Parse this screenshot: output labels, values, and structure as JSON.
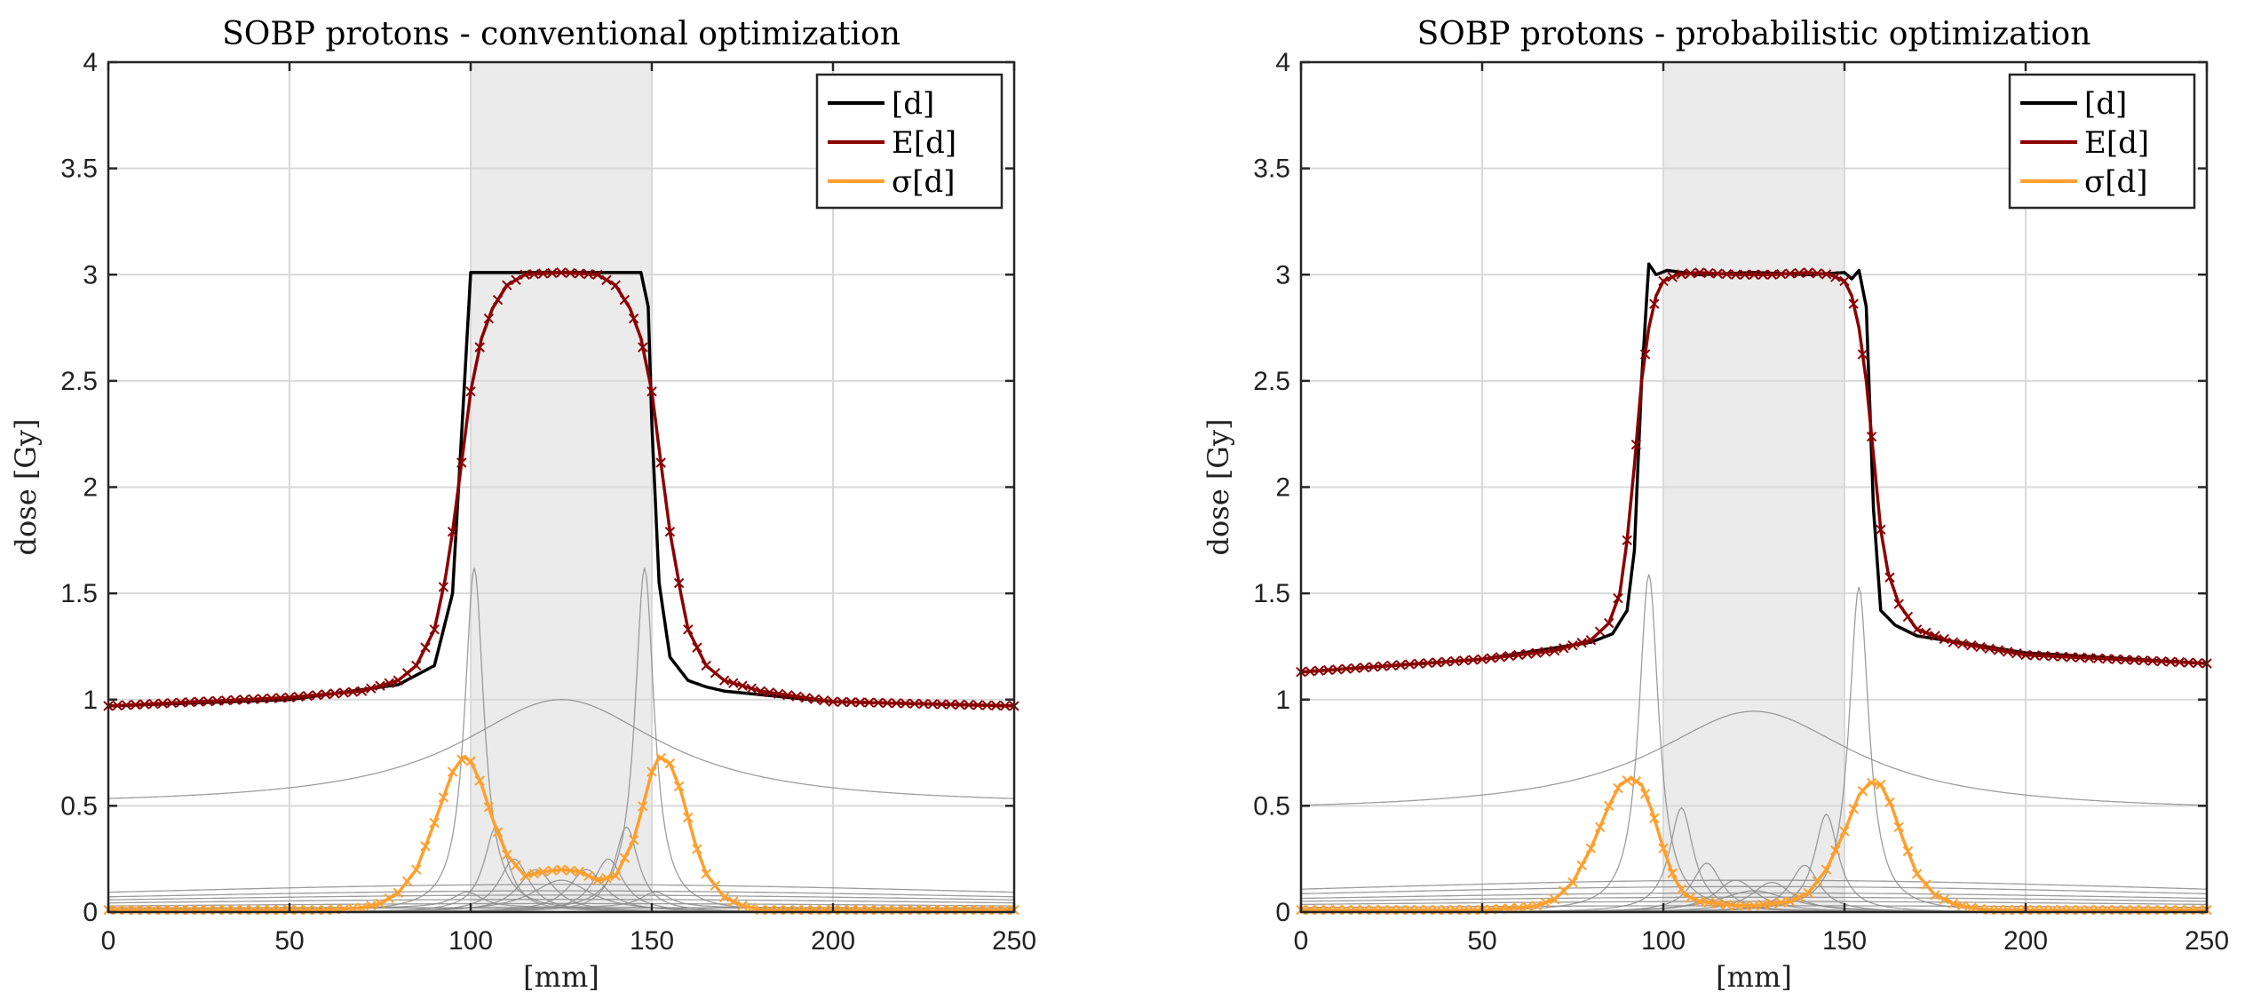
{
  "chart_data": [
    {
      "type": "line",
      "title": "SOBP protons - conventional optimization",
      "xlabel": "[mm]",
      "ylabel": "dose [Gy]",
      "xlim": [
        0,
        250
      ],
      "ylim": [
        0,
        4
      ],
      "xticks": [
        0,
        50,
        100,
        150,
        200,
        250
      ],
      "xtick_labels": [
        "0",
        "50",
        "100",
        "150",
        "200",
        "250"
      ],
      "yticks": [
        0,
        0.5,
        1,
        1.5,
        2,
        2.5,
        3,
        3.5,
        4
      ],
      "ytick_labels": [
        "0",
        "0.5",
        "1",
        "1.5",
        "2",
        "2.5",
        "3",
        "3.5",
        "4"
      ],
      "grid": true,
      "legend_position": "top-right",
      "target_region": [
        100,
        150
      ],
      "series": [
        {
          "name": "[d]",
          "color": "#000000",
          "x": [
            0,
            50,
            80,
            90,
            95,
            98,
            100,
            103,
            110,
            125,
            140,
            147,
            149,
            150,
            152,
            155,
            160,
            165,
            170,
            200,
            250
          ],
          "y": [
            0.97,
            1.0,
            1.07,
            1.16,
            1.5,
            2.4,
            3.01,
            3.01,
            3.01,
            3.01,
            3.01,
            3.01,
            2.85,
            2.3,
            1.55,
            1.2,
            1.09,
            1.06,
            1.04,
            0.99,
            0.97
          ]
        },
        {
          "name": "E[d]",
          "color": "#8b0000",
          "marker": "x",
          "x": [
            0,
            50,
            70,
            80,
            85,
            90,
            93,
            95,
            98,
            100,
            103,
            106,
            110,
            115,
            125,
            135,
            140,
            144,
            147,
            150,
            152,
            155,
            158,
            160,
            165,
            170,
            180,
            200,
            250
          ],
          "y": [
            0.97,
            1.01,
            1.04,
            1.09,
            1.16,
            1.33,
            1.57,
            1.79,
            2.18,
            2.45,
            2.7,
            2.84,
            2.95,
            3.0,
            3.01,
            3.0,
            2.95,
            2.84,
            2.7,
            2.45,
            2.18,
            1.79,
            1.5,
            1.33,
            1.16,
            1.09,
            1.04,
            0.99,
            0.97
          ]
        },
        {
          "name": "σ[d]",
          "color": "#ff9f2e",
          "marker": "x",
          "x": [
            0,
            60,
            70,
            75,
            80,
            85,
            90,
            95,
            98,
            100,
            103,
            106,
            110,
            115,
            120,
            125,
            130,
            135,
            140,
            145,
            148,
            150,
            152,
            155,
            158,
            162,
            165,
            170,
            175,
            180,
            190,
            250
          ],
          "y": [
            0.01,
            0.01,
            0.02,
            0.04,
            0.09,
            0.2,
            0.42,
            0.66,
            0.73,
            0.71,
            0.6,
            0.44,
            0.27,
            0.17,
            0.19,
            0.2,
            0.19,
            0.15,
            0.17,
            0.34,
            0.53,
            0.66,
            0.73,
            0.7,
            0.57,
            0.32,
            0.18,
            0.07,
            0.03,
            0.01,
            0.01,
            0.01
          ]
        }
      ],
      "thin_curves": [
        {
          "center": 101,
          "peak": 1.62,
          "width": 3.2,
          "base": 0.0
        },
        {
          "center": 148,
          "peak": 1.62,
          "width": 3.2,
          "base": 0.0
        },
        {
          "center": 125,
          "peak": 1.0,
          "width": 34,
          "base": 0.5
        },
        {
          "center": 107,
          "peak": 0.4,
          "width": 4,
          "base": 0.0
        },
        {
          "center": 143,
          "peak": 0.4,
          "width": 4,
          "base": 0.0
        },
        {
          "center": 112,
          "peak": 0.25,
          "width": 5,
          "base": 0.0
        },
        {
          "center": 138,
          "peak": 0.25,
          "width": 5,
          "base": 0.0
        },
        {
          "center": 118,
          "peak": 0.2,
          "width": 6,
          "base": 0.0
        },
        {
          "center": 132,
          "peak": 0.2,
          "width": 6,
          "base": 0.0
        },
        {
          "center": 125,
          "peak": 0.15,
          "width": 10,
          "base": 0.0
        },
        {
          "center": 99,
          "peak": 0.15,
          "width": 5,
          "base": 0.02
        },
        {
          "center": 151,
          "peak": 0.15,
          "width": 5,
          "base": 0.02
        },
        {
          "center": 125,
          "peak": 0.13,
          "width": 200,
          "base": 0.0
        },
        {
          "center": 125,
          "peak": 0.1,
          "width": 200,
          "base": 0.0
        },
        {
          "center": 125,
          "peak": 0.08,
          "width": 200,
          "base": 0.0
        },
        {
          "center": 125,
          "peak": 0.06,
          "width": 200,
          "base": 0.0
        },
        {
          "center": 125,
          "peak": 0.04,
          "width": 200,
          "base": 0.0
        },
        {
          "center": 125,
          "peak": 0.02,
          "width": 200,
          "base": 0.0
        }
      ]
    },
    {
      "type": "line",
      "title": "SOBP protons - probabilistic optimization",
      "xlabel": "[mm]",
      "ylabel": "dose [Gy]",
      "xlim": [
        0,
        250
      ],
      "ylim": [
        0,
        4
      ],
      "xticks": [
        0,
        50,
        100,
        150,
        200,
        250
      ],
      "xtick_labels": [
        "0",
        "50",
        "100",
        "150",
        "200",
        "250"
      ],
      "yticks": [
        0,
        0.5,
        1,
        1.5,
        2,
        2.5,
        3,
        3.5,
        4
      ],
      "ytick_labels": [
        "0",
        "0.5",
        "1",
        "1.5",
        "2",
        "2.5",
        "3",
        "3.5",
        "4"
      ],
      "grid": true,
      "legend_position": "top-right",
      "target_region": [
        100,
        150
      ],
      "series": [
        {
          "name": "[d]",
          "color": "#000000",
          "x": [
            0,
            50,
            80,
            86,
            90,
            92,
            94,
            96,
            98,
            101,
            110,
            125,
            140,
            150,
            152,
            154,
            156,
            158,
            160,
            164,
            170,
            200,
            250
          ],
          "y": [
            1.13,
            1.19,
            1.27,
            1.31,
            1.42,
            1.7,
            2.5,
            3.05,
            3.0,
            3.02,
            3.0,
            3.01,
            3.0,
            3.01,
            2.98,
            3.02,
            2.85,
            1.9,
            1.42,
            1.35,
            1.3,
            1.22,
            1.17
          ]
        },
        {
          "name": "E[d]",
          "color": "#8b0000",
          "marker": "x",
          "x": [
            0,
            50,
            70,
            80,
            85,
            88,
            90,
            92,
            94,
            96,
            98,
            100,
            104,
            110,
            120,
            130,
            140,
            146,
            150,
            152,
            154,
            156,
            158,
            160,
            162,
            165,
            170,
            180,
            200,
            250
          ],
          "y": [
            1.13,
            1.19,
            1.23,
            1.28,
            1.36,
            1.5,
            1.75,
            2.1,
            2.5,
            2.75,
            2.9,
            2.97,
            3.0,
            3.01,
            3.0,
            3.0,
            3.01,
            3.0,
            2.97,
            2.9,
            2.75,
            2.5,
            2.15,
            1.8,
            1.6,
            1.45,
            1.33,
            1.27,
            1.21,
            1.17
          ]
        },
        {
          "name": "σ[d]",
          "color": "#ff9f2e",
          "marker": "x",
          "x": [
            0,
            50,
            60,
            65,
            70,
            75,
            80,
            85,
            88,
            91,
            94,
            97,
            100,
            103,
            106,
            110,
            115,
            120,
            125,
            130,
            135,
            140,
            145,
            150,
            154,
            157,
            160,
            163,
            166,
            170,
            175,
            180,
            185,
            190,
            250
          ],
          "y": [
            0.01,
            0.01,
            0.02,
            0.03,
            0.06,
            0.14,
            0.3,
            0.5,
            0.6,
            0.63,
            0.6,
            0.47,
            0.3,
            0.16,
            0.08,
            0.05,
            0.04,
            0.03,
            0.03,
            0.04,
            0.05,
            0.09,
            0.2,
            0.38,
            0.55,
            0.61,
            0.6,
            0.5,
            0.35,
            0.18,
            0.08,
            0.04,
            0.02,
            0.01,
            0.01
          ]
        }
      ],
      "thin_curves": [
        {
          "center": 96,
          "peak": 1.59,
          "width": 3.3,
          "base": 0.0
        },
        {
          "center": 154,
          "peak": 1.53,
          "width": 3.3,
          "base": 0.0
        },
        {
          "center": 125,
          "peak": 0.95,
          "width": 34,
          "base": 0.47
        },
        {
          "center": 105,
          "peak": 0.49,
          "width": 4,
          "base": 0.0
        },
        {
          "center": 145,
          "peak": 0.46,
          "width": 4,
          "base": 0.0
        },
        {
          "center": 112,
          "peak": 0.23,
          "width": 5,
          "base": 0.0
        },
        {
          "center": 139,
          "peak": 0.22,
          "width": 5,
          "base": 0.0
        },
        {
          "center": 120,
          "peak": 0.15,
          "width": 7,
          "base": 0.0
        },
        {
          "center": 130,
          "peak": 0.14,
          "width": 7,
          "base": 0.0
        },
        {
          "center": 125,
          "peak": 0.1,
          "width": 12,
          "base": 0.0
        },
        {
          "center": 125,
          "peak": 0.15,
          "width": 200,
          "base": 0.0
        },
        {
          "center": 125,
          "peak": 0.12,
          "width": 200,
          "base": 0.0
        },
        {
          "center": 125,
          "peak": 0.09,
          "width": 200,
          "base": 0.0
        },
        {
          "center": 125,
          "peak": 0.07,
          "width": 200,
          "base": 0.0
        },
        {
          "center": 125,
          "peak": 0.05,
          "width": 200,
          "base": 0.0
        },
        {
          "center": 125,
          "peak": 0.03,
          "width": 200,
          "base": 0.0
        }
      ]
    }
  ]
}
